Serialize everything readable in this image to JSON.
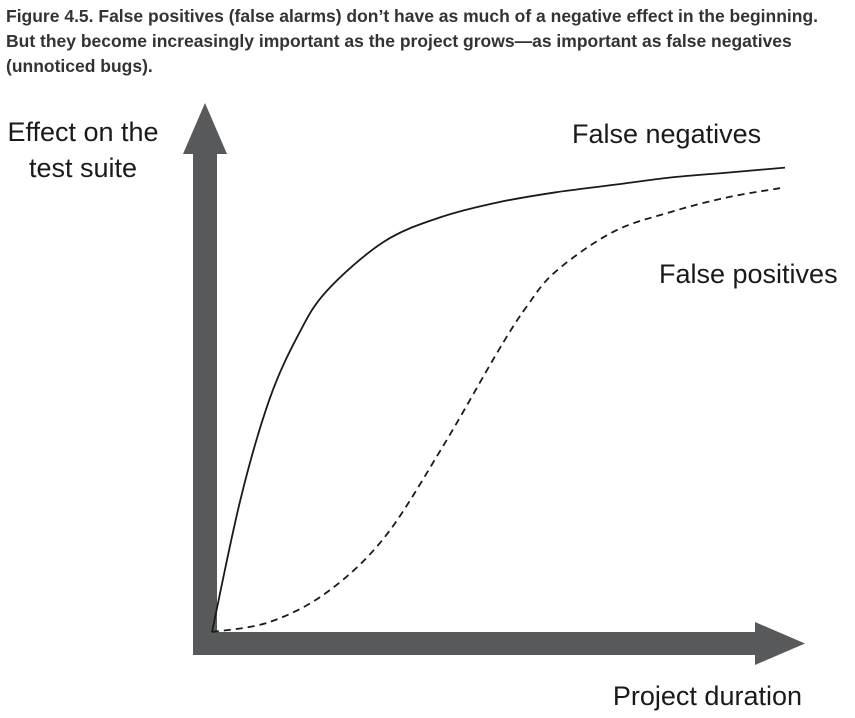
{
  "caption": "Figure 4.5. False positives (false alarms) don’t have as much of a negative effect in the beginning. But they become increasingly important as the project grows—as important as false negatives (unnoticed bugs).",
  "chart_data": {
    "type": "line",
    "ylabel_lines": [
      "Effect on the",
      "test suite"
    ],
    "xlabel": "Project duration",
    "grid": false,
    "legend": "none",
    "axis_color": "#58595b",
    "series": [
      {
        "name": "False negatives",
        "style": "solid",
        "color": "#1a1a1a",
        "x": [
          0,
          5,
          10,
          15,
          20,
          30,
          40,
          50,
          60,
          70,
          80,
          90,
          100
        ],
        "y": [
          0,
          27,
          47,
          60,
          69,
          79,
          84,
          87,
          89,
          90.5,
          92,
          93,
          94
        ]
      },
      {
        "name": "False positives",
        "style": "dashed",
        "color": "#1a1a1a",
        "x": [
          0,
          10,
          20,
          30,
          40,
          50,
          55,
          60,
          70,
          80,
          90,
          100
        ],
        "y": [
          0,
          2,
          8,
          19,
          37,
          57,
          66,
          73,
          81,
          85,
          88,
          90
        ]
      }
    ]
  }
}
